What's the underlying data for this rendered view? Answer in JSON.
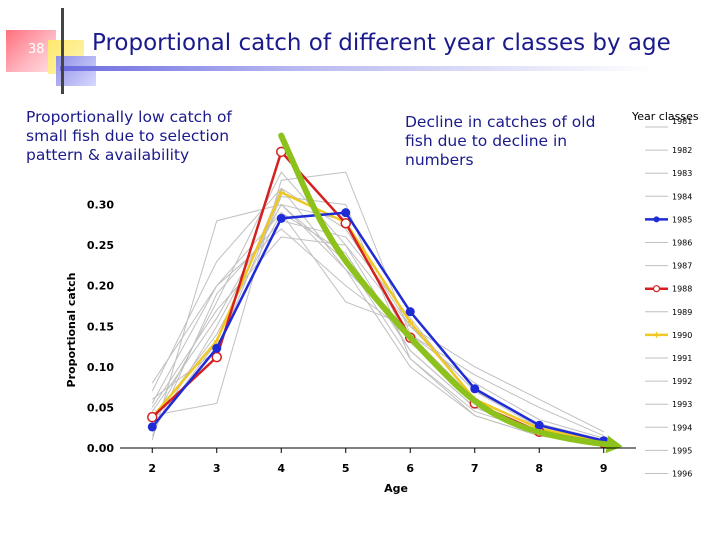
{
  "slide": {
    "number": "38",
    "title": "Proportional catch of different year classes by age",
    "annotation_left": "Proportionally low catch of small fish due to selection pattern & availability",
    "annotation_right": "Decline in catches of old fish due to decline in numbers"
  },
  "colors": {
    "title": "#1a1a8c",
    "gray_series": "#c0c0c0",
    "series_1985": "#1f2bd6",
    "series_1988": "#d61f1f",
    "series_1990": "#f0c823",
    "trend_arrow": "#8cc21b"
  },
  "chart_data": {
    "type": "line",
    "title": "",
    "xlabel": "Age",
    "ylabel": "Proportional catch",
    "x": [
      2,
      3,
      4,
      5,
      6,
      7,
      8,
      9
    ],
    "x_ticks": [
      "2",
      "3",
      "4",
      "5",
      "6",
      "7",
      "8",
      "9"
    ],
    "ylim": [
      0,
      0.35
    ],
    "y_ticks": [
      "0.00",
      "0.05",
      "0.10",
      "0.15",
      "0.20",
      "0.25",
      "0.30"
    ],
    "y_tick_values": [
      0,
      0.05,
      0.1,
      0.15,
      0.2,
      0.25,
      0.3
    ],
    "legend_title": "Year classes",
    "legend_position": "right",
    "series": [
      {
        "name": "1981",
        "values": [
          0.01,
          0.28,
          0.3,
          0.23,
          0.11,
          0.045,
          0.02,
          0.006
        ]
      },
      {
        "name": "1982",
        "values": [
          0.07,
          0.23,
          0.32,
          0.22,
          0.1,
          0.04,
          0.015,
          0.005
        ]
      },
      {
        "name": "1983",
        "values": [
          0.04,
          0.055,
          0.33,
          0.34,
          0.14,
          0.06,
          0.025,
          0.008
        ]
      },
      {
        "name": "1984",
        "values": [
          0.05,
          0.17,
          0.26,
          0.25,
          0.15,
          0.07,
          0.03,
          0.01
        ]
      },
      {
        "name": "1985",
        "values": [
          0.026,
          0.123,
          0.283,
          0.29,
          0.168,
          0.073,
          0.028,
          0.009
        ]
      },
      {
        "name": "1986",
        "values": [
          0.03,
          0.18,
          0.34,
          0.25,
          0.12,
          0.05,
          0.02,
          0.006
        ]
      },
      {
        "name": "1987",
        "values": [
          0.08,
          0.2,
          0.27,
          0.2,
          0.14,
          0.09,
          0.05,
          0.015
        ]
      },
      {
        "name": "1988",
        "values": [
          0.038,
          0.112,
          0.365,
          0.277,
          0.136,
          0.055,
          0.02,
          0.006
        ]
      },
      {
        "name": "1989",
        "values": [
          0.02,
          0.15,
          0.3,
          0.28,
          0.13,
          0.06,
          0.025,
          0.008
        ]
      },
      {
        "name": "1990",
        "values": [
          0.038,
          0.132,
          0.315,
          0.278,
          0.155,
          0.06,
          0.024,
          0.007
        ]
      },
      {
        "name": "1991",
        "values": [
          0.035,
          0.14,
          0.29,
          0.18,
          0.15,
          0.1,
          0.06,
          0.02
        ]
      },
      {
        "name": "1992",
        "values": [
          0.06,
          0.12,
          0.31,
          0.3,
          0.11,
          0.04,
          0.015,
          0.005
        ]
      },
      {
        "name": "1993",
        "values": [
          0.015,
          0.19,
          0.28,
          0.26,
          0.16,
          0.06,
          0.025,
          0.007
        ]
      },
      {
        "name": "1994",
        "values": [
          0.045,
          0.16,
          0.3,
          0.22,
          0.14,
          0.08,
          0.035,
          0.012
        ]
      },
      {
        "name": "1995",
        "values": [
          0.025,
          0.13,
          0.32,
          0.27,
          0.15,
          0.07,
          0.025,
          0.008
        ]
      },
      {
        "name": "1996",
        "values": [
          0.055,
          0.2,
          0.29,
          0.24,
          0.12,
          0.05,
          0.02,
          0.006
        ]
      }
    ],
    "highlighted": [
      "1985",
      "1988",
      "1990"
    ],
    "trend_arrow": {
      "points": [
        [
          4,
          0.385
        ],
        [
          4.7,
          0.26
        ],
        [
          5.5,
          0.18
        ],
        [
          6.3,
          0.11
        ],
        [
          7,
          0.055
        ],
        [
          7.7,
          0.025
        ],
        [
          8.5,
          0.01
        ],
        [
          9.2,
          0.003
        ]
      ]
    }
  }
}
